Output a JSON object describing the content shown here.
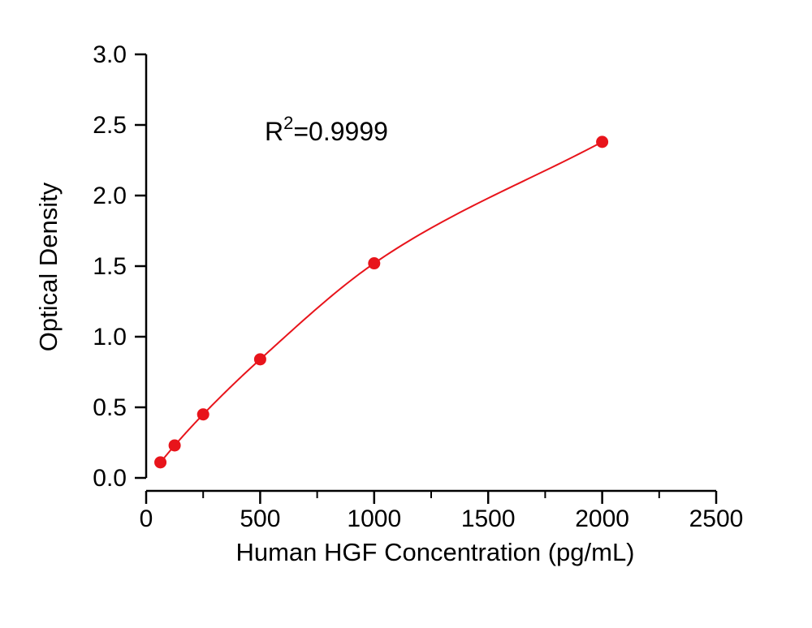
{
  "chart_data": {
    "type": "scatter",
    "xlabel": "Human HGF Concentration (pg/mL)",
    "ylabel": "Optical Density",
    "xlim": [
      0,
      2500
    ],
    "ylim": [
      0,
      3.0
    ],
    "x_ticks": [
      0,
      500,
      1000,
      1500,
      2000,
      2500
    ],
    "x_tick_labels": [
      "0",
      "500",
      "1000",
      "1500",
      "2000",
      "2500"
    ],
    "y_ticks": [
      0.0,
      0.5,
      1.0,
      1.5,
      2.0,
      2.5,
      3.0
    ],
    "y_tick_labels": [
      "0.0",
      "0.5",
      "1.0",
      "1.5",
      "2.0",
      "2.5",
      "3.0"
    ],
    "x_minor_ticks": [
      250,
      750,
      1250,
      1750,
      2250
    ],
    "grid": false,
    "series": [
      {
        "x": [
          62.5,
          125,
          250,
          500,
          1000,
          2000
        ],
        "y": [
          0.11,
          0.23,
          0.45,
          0.84,
          1.52,
          2.38
        ],
        "color": "#e8141b",
        "fit": "curve"
      }
    ],
    "annotation": {
      "base": "R",
      "superscript": "2",
      "suffix": "=0.9999"
    }
  }
}
